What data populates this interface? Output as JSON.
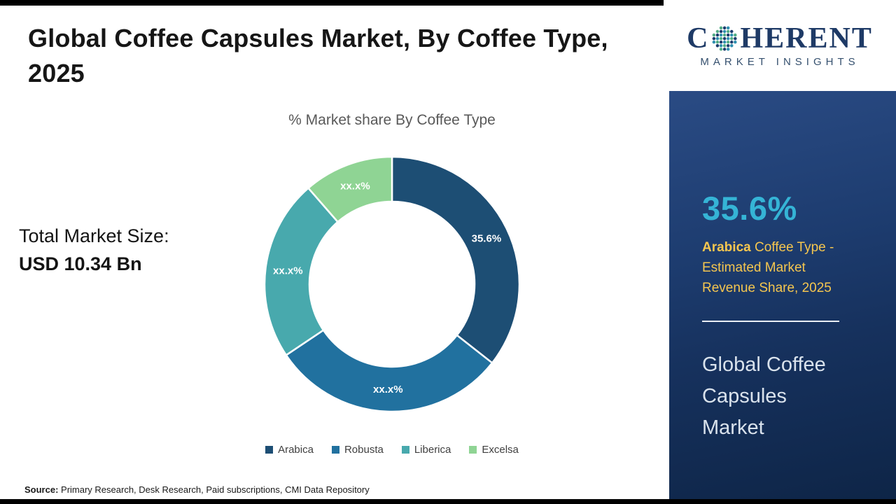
{
  "header": {
    "title": "Global Coffee Capsules Market, By Coffee Type, 2025"
  },
  "stats": {
    "total_label": "Total Market Size:",
    "total_value": "USD 10.34 Bn"
  },
  "chart_data": {
    "type": "pie",
    "subtype": "donut",
    "title": "% Market share By Coffee Type",
    "categories": [
      "Arabica",
      "Robusta",
      "Liberica",
      "Excelsa"
    ],
    "slice_labels": [
      "35.6%",
      "xx.x%",
      "xx.x%",
      "xx.x%"
    ],
    "values_pct_estimated": [
      35.6,
      30.0,
      23.0,
      11.4
    ],
    "colors": [
      "#1d4e74",
      "#21719f",
      "#48a9ad",
      "#8fd494"
    ],
    "legend_position": "bottom",
    "start_angle_deg": 0,
    "direction": "clockwise",
    "label_color": "#ffffff"
  },
  "sidebar": {
    "logo_brand_start": "C",
    "logo_brand_end": "HERENT",
    "logo_tagline": "MARKET INSIGHTS",
    "stat_value": "35.6%",
    "stat_category": "Arabica",
    "stat_description": " Coffee Type - Estimated Market Revenue Share, 2025",
    "panel_title": "Global Coffee Capsules Market",
    "accent_color": "#35b4d6",
    "label_color": "#f5c64f"
  },
  "footer": {
    "source_label": "Source:",
    "source_text": "Primary Research, Desk Research, Paid subscriptions, CMI Data Repository"
  }
}
